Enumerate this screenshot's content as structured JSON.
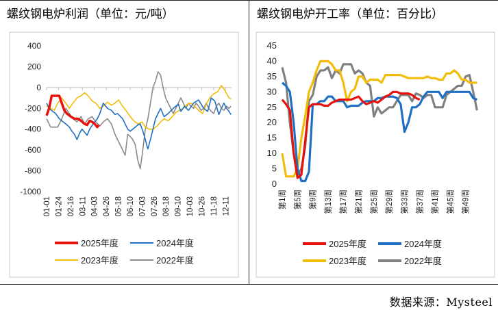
{
  "footer": {
    "source": "数据来源：Mysteel"
  },
  "chart_data": [
    {
      "type": "line",
      "title": "螺纹钢电炉利润（单位：元/吨）",
      "xlabel": "",
      "ylabel": "元/吨",
      "ylim": [
        -1000,
        400
      ],
      "yticks": [
        "400",
        "200",
        "0",
        "-200",
        "-400",
        "-600",
        "-800",
        "-1000"
      ],
      "xticks": [
        "01-01",
        "01-24",
        "02-16",
        "03-11",
        "04-03",
        "04-26",
        "05-18",
        "06-10",
        "07-03",
        "07-26",
        "08-18",
        "09-10",
        "10-03",
        "10-26",
        "11-18",
        "12-11"
      ],
      "x_domain_days": [
        0,
        365
      ],
      "legend_position": "bottom",
      "series": [
        {
          "name": "2025年度",
          "color": "#e8120c",
          "x": [
            0,
            5,
            10,
            15,
            25,
            35,
            40,
            48,
            55,
            62,
            68,
            75,
            80,
            85,
            90,
            95,
            100,
            103
          ],
          "y": [
            -270,
            -200,
            -80,
            -80,
            -80,
            -220,
            -250,
            -280,
            -300,
            -300,
            -320,
            -350,
            -360,
            -320,
            -330,
            -350,
            -380,
            -360
          ]
        },
        {
          "name": "2024年度",
          "color": "#1f6fc2",
          "x": [
            0,
            5,
            12,
            18,
            25,
            30,
            38,
            45,
            50,
            55,
            60,
            65,
            70,
            75,
            80,
            85,
            92,
            100,
            105,
            112,
            120,
            128,
            135,
            140,
            150,
            155,
            160,
            165,
            170,
            180,
            185,
            190,
            195,
            198,
            200,
            205,
            210,
            215,
            220,
            225,
            232,
            240,
            250,
            255,
            260,
            265,
            272,
            280,
            290,
            300,
            310,
            318,
            325,
            332,
            340,
            345,
            350,
            355,
            360,
            364
          ],
          "y": [
            -150,
            -200,
            -230,
            -250,
            -300,
            -320,
            -350,
            -380,
            -420,
            -450,
            -500,
            -440,
            -400,
            -430,
            -460,
            -400,
            -350,
            -300,
            -250,
            -150,
            -200,
            -220,
            -260,
            -250,
            -300,
            -350,
            -400,
            -420,
            -400,
            -360,
            -350,
            -420,
            -500,
            -560,
            -590,
            -500,
            -400,
            -300,
            -250,
            -200,
            -280,
            -250,
            -200,
            -180,
            -160,
            -230,
            -180,
            -220,
            -150,
            -120,
            -200,
            -230,
            -100,
            -130,
            -260,
            -200,
            -150,
            -200,
            -230,
            -260
          ]
        },
        {
          "name": "2023年度",
          "color": "#f2bd0a",
          "x": [
            0,
            8,
            15,
            22,
            30,
            38,
            45,
            52,
            60,
            68,
            75,
            82,
            90,
            97,
            105,
            112,
            120,
            128,
            135,
            142,
            150,
            158,
            165,
            172,
            180,
            188,
            195,
            202,
            210,
            218,
            225,
            232,
            240,
            248,
            255,
            262,
            270,
            278,
            285,
            292,
            300,
            308,
            315,
            322,
            330,
            338,
            345,
            352,
            360,
            364
          ],
          "y": [
            -180,
            -200,
            -220,
            -150,
            -100,
            -150,
            -200,
            -150,
            -100,
            -80,
            -50,
            -80,
            -130,
            -150,
            -200,
            -180,
            -140,
            -170,
            -150,
            -120,
            -180,
            -230,
            -280,
            -320,
            -350,
            -330,
            -380,
            -400,
            -400,
            -370,
            -330,
            -300,
            -320,
            -280,
            -240,
            -220,
            -200,
            -160,
            -150,
            -180,
            -220,
            -250,
            -160,
            -100,
            -60,
            -40,
            20,
            -30,
            -100,
            -110
          ]
        },
        {
          "name": "2022年度",
          "color": "#8a8a8a",
          "x": [
            0,
            8,
            15,
            22,
            30,
            38,
            45,
            52,
            60,
            68,
            75,
            82,
            90,
            97,
            105,
            112,
            120,
            128,
            135,
            140,
            145,
            150,
            155,
            160,
            165,
            170,
            175,
            180,
            185,
            190,
            195,
            200,
            205,
            210,
            215,
            220,
            225,
            230,
            235,
            240,
            245,
            250,
            255,
            260,
            265,
            270,
            275,
            280,
            285,
            290,
            295,
            300,
            305,
            310,
            315,
            320,
            325,
            330,
            335,
            340,
            345,
            350,
            355,
            360,
            364
          ],
          "y": [
            -300,
            -380,
            -380,
            -380,
            -300,
            -200,
            -250,
            -300,
            -330,
            -280,
            -350,
            -300,
            -280,
            -330,
            -370,
            -330,
            -300,
            -350,
            -450,
            -500,
            -550,
            -600,
            -650,
            -450,
            -470,
            -500,
            -550,
            -700,
            -780,
            -600,
            -400,
            -300,
            -150,
            0,
            60,
            150,
            120,
            0,
            -100,
            -150,
            -200,
            -250,
            -200,
            -150,
            -100,
            -150,
            -200,
            -150,
            -180,
            -200,
            -150,
            -180,
            -220,
            -200,
            -150,
            -200,
            -230,
            -250,
            -180,
            -150,
            -200,
            -220,
            -180,
            -200,
            -180
          ]
        }
      ]
    },
    {
      "type": "line",
      "title": "螺纹钢电炉开工率（单位：百分比）",
      "xlabel": "",
      "ylabel": "百分比",
      "ylim": [
        0,
        45
      ],
      "yticks": [
        "45",
        "40",
        "35",
        "30",
        "25",
        "20",
        "15",
        "10",
        "5",
        "0"
      ],
      "xticks": [
        "第1周",
        "第5周",
        "第9周",
        "第13周",
        "第17周",
        "第21周",
        "第25周",
        "第29周",
        "第33周",
        "第37周",
        "第41周",
        "第45周",
        "第49周"
      ],
      "x_domain_weeks": [
        1,
        53
      ],
      "legend_position": "bottom",
      "series": [
        {
          "name": "2025年度",
          "color": "#e8120c",
          "x": [
            1,
            2,
            3,
            4,
            5,
            6,
            7,
            8,
            9,
            10,
            11,
            12,
            13,
            14,
            15,
            16,
            17,
            18,
            19,
            20,
            21,
            22,
            23,
            24,
            25,
            26,
            27,
            28,
            29,
            30,
            31,
            32,
            33,
            34,
            35,
            36,
            37
          ],
          "y": [
            27.5,
            26,
            24,
            10,
            2,
            3,
            14,
            25,
            26,
            26,
            26,
            25.5,
            25.5,
            26.5,
            27,
            27.5,
            27.5,
            27.5,
            27.5,
            28,
            28.5,
            27,
            26,
            26.5,
            27,
            26.5,
            27.5,
            28.5,
            29,
            30,
            30,
            29.5,
            29.5,
            29.5,
            29,
            28,
            27.5
          ]
        },
        {
          "name": "2024年度",
          "color": "#1f6fc2",
          "x": [
            1,
            2,
            3,
            4,
            5,
            6,
            7,
            8,
            9,
            10,
            11,
            12,
            13,
            14,
            15,
            16,
            17,
            18,
            19,
            20,
            21,
            22,
            23,
            24,
            25,
            26,
            27,
            28,
            29,
            30,
            31,
            32,
            33,
            34,
            35,
            36,
            37,
            38,
            39,
            40,
            41,
            42,
            43,
            44,
            45,
            46,
            47,
            48,
            49,
            50,
            51,
            52
          ],
          "y": [
            33,
            32,
            30,
            20,
            5,
            1,
            1,
            4,
            26,
            26,
            27,
            27,
            28.5,
            28.5,
            27,
            27,
            27,
            25,
            25.5,
            25.5,
            25.5,
            26.5,
            27,
            27,
            27,
            28,
            28,
            28.5,
            28.5,
            28.5,
            28,
            26,
            17,
            20,
            25,
            25,
            26,
            28.5,
            30,
            30,
            30,
            30,
            28,
            30,
            30,
            30,
            30,
            30,
            30,
            30,
            28,
            27.5
          ]
        },
        {
          "name": "2023年度",
          "color": "#f2bd0a",
          "x": [
            1,
            2,
            3,
            4,
            5,
            6,
            7,
            8,
            9,
            10,
            11,
            12,
            13,
            14,
            15,
            16,
            17,
            18,
            19,
            20,
            21,
            22,
            23,
            24,
            25,
            26,
            27,
            28,
            29,
            30,
            31,
            32,
            33,
            34,
            35,
            36,
            37,
            38,
            39,
            40,
            41,
            42,
            43,
            44,
            45,
            46,
            47,
            48,
            49,
            50,
            51,
            52
          ],
          "y": [
            10,
            2.5,
            2.5,
            2.5,
            5,
            15,
            22,
            30,
            33,
            37,
            40,
            40,
            40,
            39,
            37,
            37,
            33,
            27,
            30,
            31,
            35,
            35,
            33,
            34,
            34,
            34,
            33,
            35.5,
            35.5,
            35.5,
            35.5,
            35.5,
            35,
            34.5,
            34.5,
            34.5,
            34.5,
            34.5,
            35,
            34.5,
            34.5,
            34,
            34,
            36,
            36,
            37,
            36,
            34,
            34,
            33,
            33,
            33
          ]
        },
        {
          "name": "2022年度",
          "color": "#808080",
          "x": [
            1,
            2,
            3,
            4,
            5,
            6,
            7,
            8,
            9,
            10,
            11,
            12,
            13,
            14,
            15,
            16,
            17,
            18,
            19,
            20,
            21,
            22,
            23,
            24,
            25,
            26,
            27,
            28,
            29,
            30,
            31,
            32,
            33,
            34,
            35,
            36,
            37,
            38,
            39,
            40,
            41,
            42,
            43,
            44,
            45,
            46,
            47,
            48,
            49,
            50,
            51,
            52
          ],
          "y": [
            38,
            33,
            20,
            10,
            3,
            5,
            12,
            27,
            29,
            35,
            37,
            37,
            38,
            34.5,
            37,
            36,
            39,
            39,
            39,
            36,
            37,
            36,
            33,
            32,
            22,
            25,
            23,
            24,
            25,
            25,
            27,
            29,
            29,
            29,
            27,
            29.5,
            29,
            28,
            29,
            29,
            25,
            25,
            25,
            29,
            30,
            31,
            32,
            32,
            35,
            35.5,
            30,
            24
          ]
        }
      ]
    }
  ]
}
